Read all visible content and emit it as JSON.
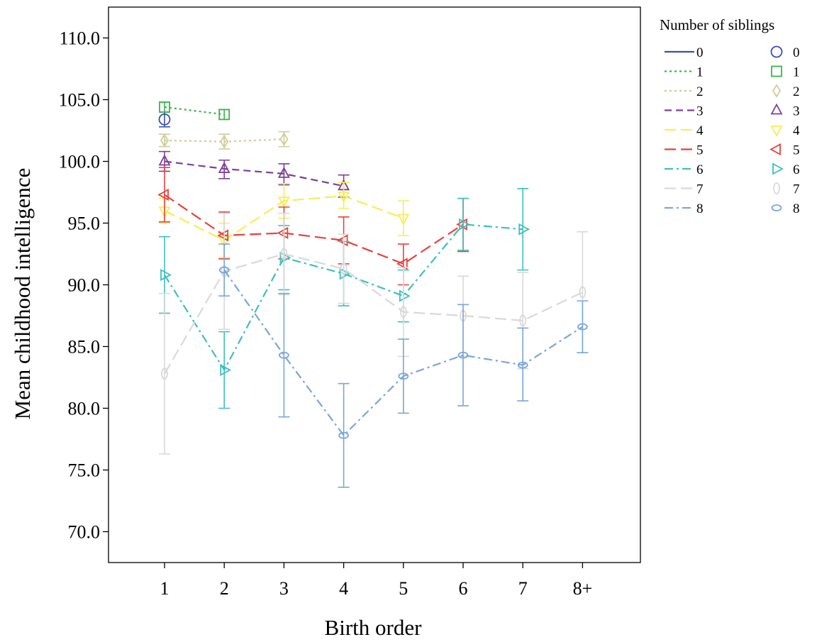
{
  "chart_data": {
    "type": "line",
    "xlabel": "Birth order",
    "ylabel": "Mean childhood intelligence",
    "categories": [
      "1",
      "2",
      "3",
      "4",
      "5",
      "6",
      "7",
      "8+"
    ],
    "ylim": [
      67.5,
      112.5
    ],
    "yticks": [
      "70.0",
      "75.0",
      "80.0",
      "85.0",
      "90.0",
      "95.0",
      "100.0",
      "105.0",
      "110.0"
    ],
    "grid": false,
    "error_bars": true,
    "legend": {
      "title": "Number of siblings",
      "position": "right",
      "entries": [
        "0",
        "1",
        "2",
        "3",
        "4",
        "5",
        "6",
        "7",
        "8"
      ]
    },
    "series": [
      {
        "name": "0",
        "color": "#3b4fb0",
        "dash": "solid",
        "marker": "circle",
        "values": [
          103.4,
          null,
          null,
          null,
          null,
          null,
          null,
          null
        ],
        "lower": [
          102.8,
          null,
          null,
          null,
          null,
          null,
          null,
          null
        ],
        "upper": [
          104.0,
          null,
          null,
          null,
          null,
          null,
          null,
          null
        ]
      },
      {
        "name": "1",
        "color": "#3cb44b",
        "dash": "dot",
        "marker": "square",
        "values": [
          104.4,
          103.8,
          null,
          null,
          null,
          null,
          null,
          null
        ],
        "lower": [
          104.0,
          103.4,
          null,
          null,
          null,
          null,
          null,
          null
        ],
        "upper": [
          104.8,
          104.2,
          null,
          null,
          null,
          null,
          null,
          null
        ]
      },
      {
        "name": "2",
        "color": "#cfcc9a",
        "dash": "dot",
        "marker": "diamond",
        "values": [
          101.7,
          101.6,
          101.8,
          null,
          null,
          null,
          null,
          null
        ],
        "lower": [
          101.2,
          101.0,
          101.2,
          null,
          null,
          null,
          null,
          null
        ],
        "upper": [
          102.2,
          102.2,
          102.4,
          null,
          null,
          null,
          null,
          null
        ]
      },
      {
        "name": "3",
        "color": "#7e3f98",
        "dash": "dash",
        "marker": "triangle-up",
        "values": [
          100.0,
          99.4,
          99.0,
          98.0,
          null,
          null,
          null,
          null
        ],
        "lower": [
          99.2,
          98.6,
          98.1,
          97.1,
          null,
          null,
          null,
          null
        ],
        "upper": [
          100.8,
          100.1,
          99.8,
          98.9,
          null,
          null,
          null,
          null
        ]
      },
      {
        "name": "4",
        "color": "#f7ee55",
        "dash": "longdash",
        "marker": "triangle-down",
        "values": [
          96.0,
          93.6,
          96.8,
          97.2,
          95.4,
          null,
          null,
          null
        ],
        "lower": [
          95.0,
          92.2,
          95.4,
          96.2,
          94.0,
          null,
          null,
          null
        ],
        "upper": [
          97.0,
          95.0,
          98.2,
          98.3,
          96.8,
          null,
          null,
          null
        ]
      },
      {
        "name": "5",
        "color": "#e8413c",
        "dash": "longdash",
        "marker": "triangle-left",
        "values": [
          97.3,
          94.0,
          94.2,
          93.6,
          91.7,
          94.9,
          null,
          null
        ],
        "lower": [
          95.1,
          92.1,
          92.1,
          91.7,
          90.0,
          92.7,
          null,
          null
        ],
        "upper": [
          99.5,
          95.9,
          96.3,
          95.5,
          93.3,
          97.0,
          null,
          null
        ]
      },
      {
        "name": "6",
        "color": "#3fbfbf",
        "dash": "dashdot",
        "marker": "triangle-right",
        "values": [
          90.8,
          83.1,
          92.2,
          90.9,
          89.1,
          94.9,
          94.5,
          null
        ],
        "lower": [
          87.7,
          80.0,
          89.6,
          88.3,
          87.0,
          92.8,
          91.2,
          null
        ],
        "upper": [
          93.9,
          86.2,
          94.8,
          93.5,
          91.2,
          97.0,
          97.8,
          null
        ]
      },
      {
        "name": "7",
        "color": "#d9d9d9",
        "dash": "longdash",
        "marker": "ellipse-vertical",
        "values": [
          82.8,
          91.1,
          92.5,
          91.3,
          87.8,
          87.5,
          87.1,
          89.4
        ],
        "lower": [
          76.3,
          86.4,
          89.2,
          88.5,
          84.2,
          84.2,
          83.2,
          84.5
        ],
        "upper": [
          89.3,
          95.8,
          95.8,
          94.1,
          91.4,
          90.7,
          91.0,
          94.3
        ]
      },
      {
        "name": "8",
        "color": "#7aa7d9",
        "dash": "dashdot",
        "marker": "ellipse-horizontal",
        "values": [
          null,
          91.2,
          84.3,
          77.8,
          82.6,
          84.3,
          83.5,
          86.6
        ],
        "lower": [
          null,
          89.1,
          79.3,
          73.6,
          79.6,
          80.2,
          80.6,
          84.5
        ],
        "upper": [
          null,
          93.3,
          89.3,
          82.0,
          85.6,
          88.4,
          86.5,
          88.7
        ]
      }
    ]
  }
}
